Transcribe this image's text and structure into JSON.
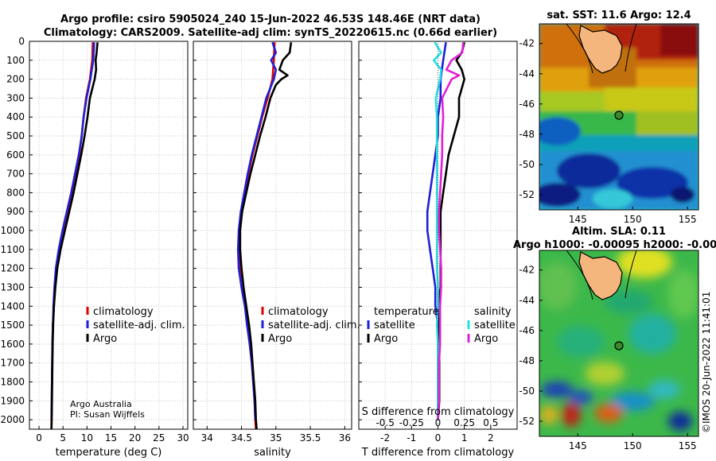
{
  "title_line1": "Argo profile: csiro 5905024_240 15-Jun-2022 46.53S 148.46E (NRT data)",
  "title_line2": "Climatology: CARS2009. Satellite-adj clim: synTS_20220615.nc (0.66d earlier)",
  "credit_line1": "Argo Australia",
  "credit_line2": "PI: Susan Wijffels",
  "timestamp": "©IMOS 20-Jun-2022 11:41:01",
  "colors": {
    "climatology": "#e00000",
    "satellite": "#1f1fd6",
    "argo": "#000000",
    "sat_diff": "#22e0e6",
    "argo_sal_diff": "#e020d8"
  },
  "chart_data": [
    {
      "type": "line",
      "id": "temperature",
      "xlabel": "temperature (deg C)",
      "ylabel": "",
      "xlim": [
        -2,
        31
      ],
      "ylim": [
        2050,
        0
      ],
      "xticks": [
        0,
        5,
        10,
        15,
        20,
        25,
        30
      ],
      "yticks": [
        0,
        100,
        200,
        300,
        400,
        500,
        600,
        700,
        800,
        900,
        1000,
        1100,
        1200,
        1300,
        1400,
        1500,
        1600,
        1700,
        1800,
        1900,
        2000
      ],
      "legend": [
        "climatology",
        "satellite-adj. clim.",
        "Argo"
      ],
      "series": [
        {
          "name": "climatology",
          "depth": [
            5,
            100,
            200,
            300,
            400,
            500,
            600,
            700,
            800,
            900,
            1000,
            1100,
            1200,
            1300,
            1400,
            1500,
            1600,
            1700,
            1800,
            1900,
            2000,
            2050
          ],
          "values": [
            11.2,
            11.1,
            10.6,
            9.8,
            9.3,
            8.9,
            8.4,
            7.7,
            7.0,
            6.2,
            5.3,
            4.4,
            3.7,
            3.3,
            3.1,
            2.9,
            2.8,
            2.75,
            2.7,
            2.65,
            2.6,
            2.6
          ]
        },
        {
          "name": "satellite-adj. clim.",
          "depth": [
            5,
            100,
            200,
            300,
            400,
            500,
            600,
            700,
            800,
            900,
            1000,
            1100,
            1200,
            1300,
            1400,
            1500,
            1600,
            1700,
            1800,
            1900,
            2000
          ],
          "values": [
            11.5,
            11.3,
            10.7,
            9.9,
            9.3,
            8.9,
            8.3,
            7.5,
            6.7,
            5.8,
            4.9,
            4.1,
            3.5,
            3.2,
            3.0,
            2.9,
            2.8,
            2.75,
            2.7,
            2.65,
            2.6
          ]
        },
        {
          "name": "Argo",
          "depth": [
            5,
            60,
            100,
            150,
            200,
            300,
            400,
            500,
            600,
            700,
            800,
            900,
            1000,
            1100,
            1200,
            1300,
            1400,
            1500,
            1600,
            1700,
            1800,
            1900,
            2000,
            2050
          ],
          "values": [
            12.2,
            12.0,
            11.8,
            11.9,
            11.6,
            10.6,
            10.1,
            9.5,
            8.8,
            8.0,
            7.2,
            6.3,
            5.4,
            4.5,
            3.8,
            3.4,
            3.1,
            2.95,
            2.85,
            2.8,
            2.75,
            2.7,
            2.65,
            2.6
          ]
        }
      ]
    },
    {
      "type": "line",
      "id": "salinity",
      "xlabel": "salinity",
      "ylabel": "",
      "xlim": [
        33.8,
        36.1
      ],
      "ylim": [
        2050,
        0
      ],
      "xticks": [
        34,
        34.5,
        35,
        35.5,
        36
      ],
      "legend": [
        "climatology",
        "satellite-adj. clim.",
        "Argo"
      ],
      "series": [
        {
          "name": "climatology",
          "depth": [
            5,
            100,
            200,
            300,
            400,
            500,
            600,
            700,
            800,
            900,
            1000,
            1100,
            1200,
            1300,
            1400,
            1500,
            1600,
            1700,
            1800,
            1900,
            2000,
            2050
          ],
          "values": [
            34.98,
            34.97,
            34.95,
            34.88,
            34.8,
            34.73,
            34.66,
            34.6,
            34.55,
            34.5,
            34.47,
            34.46,
            34.47,
            34.5,
            34.55,
            34.59,
            34.62,
            34.65,
            34.67,
            34.69,
            34.7,
            34.71
          ]
        },
        {
          "name": "satellite-adj. clim.",
          "depth": [
            5,
            60,
            100,
            150,
            200,
            300,
            400,
            500,
            600,
            700,
            800,
            900,
            1000,
            1100,
            1200,
            1300,
            1400,
            1500,
            1600,
            1700,
            1800,
            1900,
            2000
          ],
          "values": [
            34.95,
            35.0,
            34.93,
            35.0,
            34.97,
            34.86,
            34.79,
            34.72,
            34.65,
            34.59,
            34.54,
            34.49,
            34.46,
            34.45,
            34.46,
            34.5,
            34.55,
            34.58,
            34.62,
            34.65,
            34.67,
            34.69,
            34.7
          ]
        },
        {
          "name": "Argo",
          "depth": [
            5,
            60,
            100,
            150,
            180,
            200,
            230,
            300,
            400,
            500,
            600,
            700,
            800,
            900,
            1000,
            1100,
            1200,
            1300,
            1400,
            1500,
            1600,
            1700,
            1800,
            1900,
            2000,
            2050
          ],
          "values": [
            35.22,
            35.2,
            35.1,
            35.05,
            35.17,
            35.08,
            35.0,
            34.92,
            34.85,
            34.77,
            34.7,
            34.63,
            34.57,
            34.51,
            34.48,
            34.48,
            34.5,
            34.53,
            34.57,
            34.61,
            34.64,
            34.66,
            34.68,
            34.7,
            34.71,
            34.72
          ]
        }
      ]
    },
    {
      "type": "line",
      "id": "differences",
      "xlabel": "T difference from climatology",
      "top_xlabel": "S difference from climatology",
      "xlim": [
        -3,
        3
      ],
      "ylim": [
        2050,
        0
      ],
      "xticks": [
        -2,
        -1,
        0,
        1,
        2
      ],
      "top_xticks": [
        -0.5,
        -0.25,
        0,
        0.25,
        0.5
      ],
      "legend_temperature_title": "temperature",
      "legend_salinity_title": "salinity",
      "legend_entries": [
        "satellite",
        "Argo",
        "satellite",
        "Argo"
      ],
      "series": [
        {
          "name": "temperature satellite",
          "depth": [
            5,
            100,
            200,
            300,
            400,
            500,
            600,
            700,
            800,
            900,
            1000,
            1100,
            1200,
            1300,
            1400,
            1500,
            1600,
            1700,
            1800,
            1900,
            2000
          ],
          "values": [
            0.3,
            0.2,
            0.1,
            0.1,
            0.0,
            0.0,
            -0.1,
            -0.2,
            -0.3,
            -0.4,
            -0.4,
            -0.3,
            -0.2,
            -0.1,
            -0.1,
            0.0,
            0.0,
            0.0,
            0.0,
            0.0,
            0.0
          ]
        },
        {
          "name": "temperature Argo",
          "depth": [
            5,
            60,
            100,
            150,
            200,
            300,
            400,
            500,
            600,
            700,
            800,
            900,
            1000,
            1100,
            1200,
            1300,
            1400,
            1500,
            1600,
            1700,
            1800,
            1900,
            2000
          ],
          "values": [
            1.0,
            0.9,
            0.7,
            0.9,
            1.0,
            0.8,
            0.8,
            0.6,
            0.4,
            0.3,
            0.2,
            0.1,
            0.1,
            0.1,
            0.1,
            0.1,
            0.0,
            0.05,
            0.05,
            0.05,
            0.05,
            0.05,
            0.0
          ]
        },
        {
          "name": "salinity satellite",
          "depth": [
            5,
            60,
            100,
            150,
            200,
            300,
            400,
            500,
            600,
            700,
            800,
            900,
            1000,
            1100,
            1200,
            1300,
            1400,
            1500,
            1600,
            1700,
            1800,
            1900,
            2000
          ],
          "values": [
            -0.03,
            0.03,
            -0.04,
            0.03,
            0.02,
            -0.02,
            -0.01,
            -0.01,
            -0.01,
            -0.01,
            -0.01,
            -0.01,
            -0.01,
            -0.01,
            -0.01,
            0.0,
            0.0,
            -0.01,
            0.0,
            0.0,
            0.0,
            0.0,
            0.0
          ]
        },
        {
          "name": "salinity Argo",
          "depth": [
            5,
            60,
            100,
            150,
            180,
            200,
            300,
            400,
            500,
            600,
            700,
            800,
            900,
            1000,
            1100,
            1200,
            1300,
            1400,
            1500,
            1600,
            1700,
            1800,
            1900,
            2000
          ],
          "values": [
            0.24,
            0.23,
            0.13,
            0.08,
            0.2,
            0.13,
            0.04,
            0.05,
            0.04,
            0.04,
            0.03,
            0.02,
            0.01,
            0.01,
            0.02,
            0.03,
            0.03,
            0.02,
            0.02,
            0.02,
            0.01,
            0.01,
            0.01,
            0.0
          ]
        }
      ]
    },
    {
      "type": "heatmap",
      "id": "sst_map",
      "title": "sat. SST: 11.6 Argo: 12.4",
      "xticks": [
        145,
        150,
        155
      ],
      "yticks": [
        -42,
        -44,
        -46,
        -48,
        -50,
        -52
      ],
      "xlim": [
        141.5,
        156
      ],
      "ylim": [
        -53,
        -40.7
      ],
      "marker": {
        "lon": 148.46,
        "lat": -46.53
      }
    },
    {
      "type": "heatmap",
      "id": "sla_map",
      "title_line1": "Altim. SLA: 0.11",
      "title_line2": "Argo h1000: -0.00095 h2000: -0.00",
      "xticks": [
        145,
        150,
        155
      ],
      "yticks": [
        -42,
        -44,
        -46,
        -48,
        -50,
        -52
      ],
      "xlim": [
        141.5,
        156
      ],
      "ylim": [
        -53,
        -40.7
      ],
      "marker": {
        "lon": 148.46,
        "lat": -46.53
      }
    }
  ]
}
